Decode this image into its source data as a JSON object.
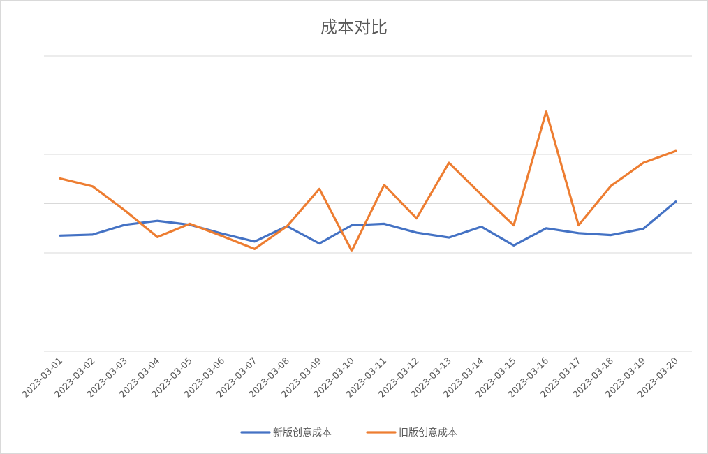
{
  "chart_data": {
    "type": "line",
    "title": "成本对比",
    "xlabel": "",
    "ylabel": "",
    "x": [
      "2023-03-01",
      "2023-03-02",
      "2023-03-03",
      "2023-03-04",
      "2023-03-05",
      "2023-03-06",
      "2023-03-07",
      "2023-03-08",
      "2023-03-09",
      "2023-03-10",
      "2023-03-11",
      "2023-03-12",
      "2023-03-13",
      "2023-03-14",
      "2023-03-15",
      "2023-03-16",
      "2023-03-17",
      "2023-03-18",
      "2023-03-19",
      "2023-03-20"
    ],
    "series": [
      {
        "name": "新版创意成本",
        "color": "#4472C4",
        "values": [
          2.35,
          2.37,
          2.57,
          2.65,
          2.57,
          2.39,
          2.23,
          2.54,
          2.19,
          2.56,
          2.59,
          2.41,
          2.31,
          2.53,
          2.15,
          2.5,
          2.4,
          2.36,
          2.49,
          3.04
        ]
      },
      {
        "name": "旧版创意成本",
        "color": "#ED7D31",
        "values": [
          3.51,
          3.35,
          2.86,
          2.32,
          2.59,
          2.34,
          2.08,
          2.54,
          3.3,
          2.04,
          3.38,
          2.7,
          3.83,
          3.18,
          2.56,
          4.87,
          2.56,
          3.36,
          3.83,
          4.07
        ]
      }
    ],
    "ylim": [
      0,
      6
    ],
    "grid": true,
    "y_tick_labels_visible": false,
    "legend_position": "bottom"
  }
}
